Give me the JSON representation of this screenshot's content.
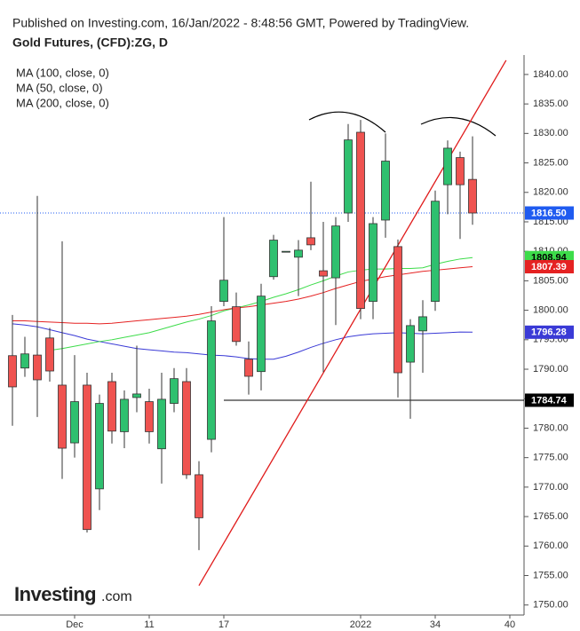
{
  "chart_data": {
    "type": "candlestick",
    "header": "Published on Investing.com, 16/Jan/2022 - 8:48:56 GMT, Powered by TradingView.",
    "title": "Gold Futures, (CFD):ZG, D",
    "logo_main": "Investing",
    "logo_suffix": ".com",
    "up_color": "#2fc06f",
    "down_color": "#ef5350",
    "open": [
      1792.3,
      1790.2,
      1792.4,
      1795.3,
      1787.3,
      1777.5,
      1787.3,
      1769.7,
      1787.9,
      1779.4,
      1785.2,
      1784.5,
      1776.5,
      1784.2,
      1787.9,
      1772.1,
      1778.1,
      1801.5,
      1800.6,
      1791.7,
      1789.6,
      1805.7,
      1810.0,
      1809.0,
      1812.3,
      1806.7,
      1805.5,
      1816.5,
      1830.2,
      1801.5,
      1815.3,
      1810.8,
      1791.2,
      1796.5,
      1801.5,
      1821.3,
      1825.9,
      1822.2
    ],
    "high": [
      1799.2,
      1795.5,
      1819.4,
      1797.0,
      1811.7,
      1792.4,
      1789.4,
      1785.7,
      1789.4,
      1786.4,
      1794.0,
      1786.7,
      1789.4,
      1790.2,
      1790.2,
      1774.4,
      1800.7,
      1815.8,
      1803.0,
      1794.7,
      1804.5,
      1812.8,
      1810.0,
      1811.9,
      1821.8,
      1815.0,
      1815.8,
      1831.6,
      1832.3,
      1815.8,
      1830.0,
      1812.0,
      1798.5,
      1801.7,
      1820.3,
      1828.8,
      1826.9,
      1829.5
    ],
    "low": [
      1780.4,
      1788.7,
      1781.9,
      1787.9,
      1771.4,
      1775.0,
      1762.3,
      1766.1,
      1777.4,
      1776.6,
      1782.7,
      1777.4,
      1770.6,
      1782.7,
      1771.4,
      1759.3,
      1775.9,
      1800.7,
      1794.0,
      1785.7,
      1786.4,
      1805.2,
      1810.0,
      1802.4,
      1810.2,
      1789.5,
      1797.5,
      1815.0,
      1798.5,
      1798.5,
      1812.3,
      1785.2,
      1781.6,
      1789.4,
      1799.9,
      1816.3,
      1812.1,
      1814.5
    ],
    "close": [
      1787.0,
      1792.6,
      1788.2,
      1789.7,
      1776.6,
      1784.5,
      1762.8,
      1784.2,
      1779.5,
      1784.9,
      1785.8,
      1779.4,
      1784.9,
      1788.4,
      1772.1,
      1764.8,
      1798.2,
      1805.1,
      1794.7,
      1788.8,
      1802.4,
      1811.9,
      1810.0,
      1810.2,
      1811.1,
      1805.8,
      1814.3,
      1828.9,
      1800.3,
      1814.7,
      1825.3,
      1789.4,
      1797.4,
      1798.9,
      1818.5,
      1827.5,
      1821.3,
      1816.5
    ],
    "series": [
      {
        "name": "MA (100, close, 0)",
        "color": "#3a3ad6",
        "end_label": "1796.28",
        "values": [
          1797.7,
          1797.5,
          1797.2,
          1796.7,
          1796.2,
          1795.7,
          1795.1,
          1794.7,
          1794.3,
          1793.9,
          1793.5,
          1793.3,
          1793.1,
          1792.9,
          1792.8,
          1792.6,
          1792.4,
          1792.3,
          1792.1,
          1791.8,
          1791.7,
          1791.7,
          1792.2,
          1792.9,
          1793.7,
          1794.4,
          1795.0,
          1795.5,
          1795.8,
          1796.0,
          1796.1,
          1796.2,
          1796.1,
          1796.0,
          1796.1,
          1796.2,
          1796.3,
          1796.28
        ]
      },
      {
        "name": "MA (50, close, 0)",
        "color": "#3ddc4a",
        "end_label": "1808.94",
        "values": [
          null,
          null,
          null,
          1793.2,
          1793.5,
          1793.9,
          1794.3,
          1794.7,
          1795.0,
          1795.4,
          1795.8,
          1796.2,
          1796.8,
          1797.4,
          1798.0,
          1798.5,
          1799.1,
          1799.9,
          1800.4,
          1800.9,
          1801.5,
          1802.2,
          1802.8,
          1803.5,
          1804.3,
          1805.0,
          1805.8,
          1806.5,
          1806.8,
          1807.0,
          1807.0,
          1807.1,
          1807.1,
          1807.2,
          1807.8,
          1808.3,
          1808.7,
          1808.94
        ]
      },
      {
        "name": "MA (200, close, 0)",
        "color": "#e52222",
        "end_label": "1807.39",
        "values": [
          1798.2,
          1798.2,
          1798.1,
          1798.0,
          1797.9,
          1797.8,
          1797.8,
          1797.7,
          1797.8,
          1798.0,
          1798.2,
          1798.4,
          1798.6,
          1798.8,
          1799.0,
          1799.3,
          1799.7,
          1800.1,
          1800.4,
          1800.6,
          1800.9,
          1801.2,
          1801.5,
          1801.9,
          1802.4,
          1803.0,
          1803.7,
          1804.3,
          1804.9,
          1805.3,
          1805.7,
          1806.0,
          1806.3,
          1806.6,
          1806.8,
          1807.0,
          1807.2,
          1807.39
        ]
      }
    ],
    "last_price": {
      "value": 1816.5,
      "label": "1816.50",
      "color": "#1f5bf0"
    },
    "level": {
      "value": 1784.74,
      "label": "1784.74",
      "x_from": 17,
      "color": "#000000"
    },
    "trendline": {
      "x": [
        15,
        39.7
      ],
      "y": [
        1753.3,
        1842.4
      ],
      "color": "#e01b1b"
    },
    "xlim": [
      -1,
      41
    ],
    "xticks": [
      {
        "value": 5,
        "label": "Dec"
      },
      11,
      17,
      {
        "value": 28,
        "label": "2022"
      },
      34,
      40
    ],
    "ylim": [
      1748.3,
      1843.3
    ],
    "yticks": [
      {
        "value": 1750,
        "label": "1750.00"
      },
      {
        "value": 1755,
        "label": "1755.00"
      },
      {
        "value": 1760,
        "label": "1760.00"
      },
      {
        "value": 1765,
        "label": "1765.00"
      },
      {
        "value": 1770,
        "label": "1770.00"
      },
      {
        "value": 1775,
        "label": "1775.00"
      },
      {
        "value": 1780,
        "label": "1780.00"
      },
      {
        "value": 1785,
        "label": "1785.00"
      },
      {
        "value": 1790,
        "label": "1790.00"
      },
      {
        "value": 1795,
        "label": "1795.00"
      },
      {
        "value": 1800,
        "label": "1800.00"
      },
      {
        "value": 1805,
        "label": "1805.00"
      },
      {
        "value": 1810,
        "label": "1810.00"
      },
      {
        "value": 1815,
        "label": "1815.00"
      },
      {
        "value": 1820,
        "label": "1820.00"
      },
      {
        "value": 1825,
        "label": "1825.00"
      },
      {
        "value": 1830,
        "label": "1830.00"
      },
      {
        "value": 1835,
        "label": "1835.00"
      },
      {
        "value": 1840,
        "label": "1840.00"
      }
    ]
  }
}
